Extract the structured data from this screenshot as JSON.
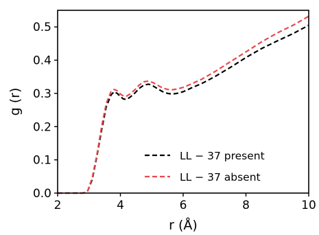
{
  "chart_data": {
    "type": "line",
    "xlabel": "r (Å)",
    "ylabel": "g (r)",
    "xlim": [
      2,
      10
    ],
    "ylim": [
      0,
      0.55
    ],
    "x_ticks": [
      2,
      4,
      6,
      8,
      10
    ],
    "y_ticks": [
      0.0,
      0.1,
      0.2,
      0.3,
      0.4,
      0.5
    ],
    "x_tick_labels": [
      "2",
      "4",
      "6",
      "8",
      "10"
    ],
    "y_tick_labels": [
      "0.0",
      "0.1",
      "0.2",
      "0.3",
      "0.4",
      "0.5"
    ],
    "grid": false,
    "legend_position": "lower-right",
    "series": [
      {
        "name": "LL − 37 present",
        "color": "#000000",
        "line_style": "dashed",
        "points": [
          [
            2.0,
            0.0
          ],
          [
            2.5,
            0.0
          ],
          [
            2.8,
            0.0
          ],
          [
            2.95,
            0.005
          ],
          [
            3.1,
            0.04
          ],
          [
            3.25,
            0.11
          ],
          [
            3.4,
            0.19
          ],
          [
            3.55,
            0.26
          ],
          [
            3.7,
            0.295
          ],
          [
            3.8,
            0.305
          ],
          [
            3.9,
            0.3
          ],
          [
            4.0,
            0.29
          ],
          [
            4.1,
            0.283
          ],
          [
            4.2,
            0.282
          ],
          [
            4.3,
            0.288
          ],
          [
            4.45,
            0.3
          ],
          [
            4.6,
            0.315
          ],
          [
            4.75,
            0.325
          ],
          [
            4.9,
            0.328
          ],
          [
            5.05,
            0.322
          ],
          [
            5.2,
            0.313
          ],
          [
            5.35,
            0.305
          ],
          [
            5.5,
            0.3
          ],
          [
            5.65,
            0.298
          ],
          [
            5.8,
            0.3
          ],
          [
            6.0,
            0.305
          ],
          [
            6.3,
            0.318
          ],
          [
            6.6,
            0.33
          ],
          [
            7.0,
            0.35
          ],
          [
            7.5,
            0.378
          ],
          [
            8.0,
            0.408
          ],
          [
            8.5,
            0.435
          ],
          [
            9.0,
            0.458
          ],
          [
            9.5,
            0.48
          ],
          [
            10.0,
            0.505
          ]
        ]
      },
      {
        "name": "LL − 37 absent",
        "color": "#e8474c",
        "line_style": "dashed",
        "points": [
          [
            2.0,
            0.0
          ],
          [
            2.5,
            0.0
          ],
          [
            2.8,
            0.0
          ],
          [
            2.95,
            0.005
          ],
          [
            3.1,
            0.045
          ],
          [
            3.25,
            0.115
          ],
          [
            3.4,
            0.2
          ],
          [
            3.55,
            0.27
          ],
          [
            3.7,
            0.305
          ],
          [
            3.8,
            0.312
          ],
          [
            3.9,
            0.308
          ],
          [
            4.0,
            0.298
          ],
          [
            4.1,
            0.292
          ],
          [
            4.2,
            0.292
          ],
          [
            4.3,
            0.298
          ],
          [
            4.45,
            0.31
          ],
          [
            4.6,
            0.325
          ],
          [
            4.75,
            0.335
          ],
          [
            4.9,
            0.337
          ],
          [
            5.05,
            0.332
          ],
          [
            5.2,
            0.324
          ],
          [
            5.35,
            0.316
          ],
          [
            5.5,
            0.312
          ],
          [
            5.65,
            0.311
          ],
          [
            5.8,
            0.313
          ],
          [
            6.0,
            0.318
          ],
          [
            6.3,
            0.33
          ],
          [
            6.6,
            0.343
          ],
          [
            7.0,
            0.365
          ],
          [
            7.5,
            0.395
          ],
          [
            8.0,
            0.425
          ],
          [
            8.5,
            0.455
          ],
          [
            9.0,
            0.482
          ],
          [
            9.5,
            0.505
          ],
          [
            10.0,
            0.532
          ]
        ]
      }
    ]
  }
}
